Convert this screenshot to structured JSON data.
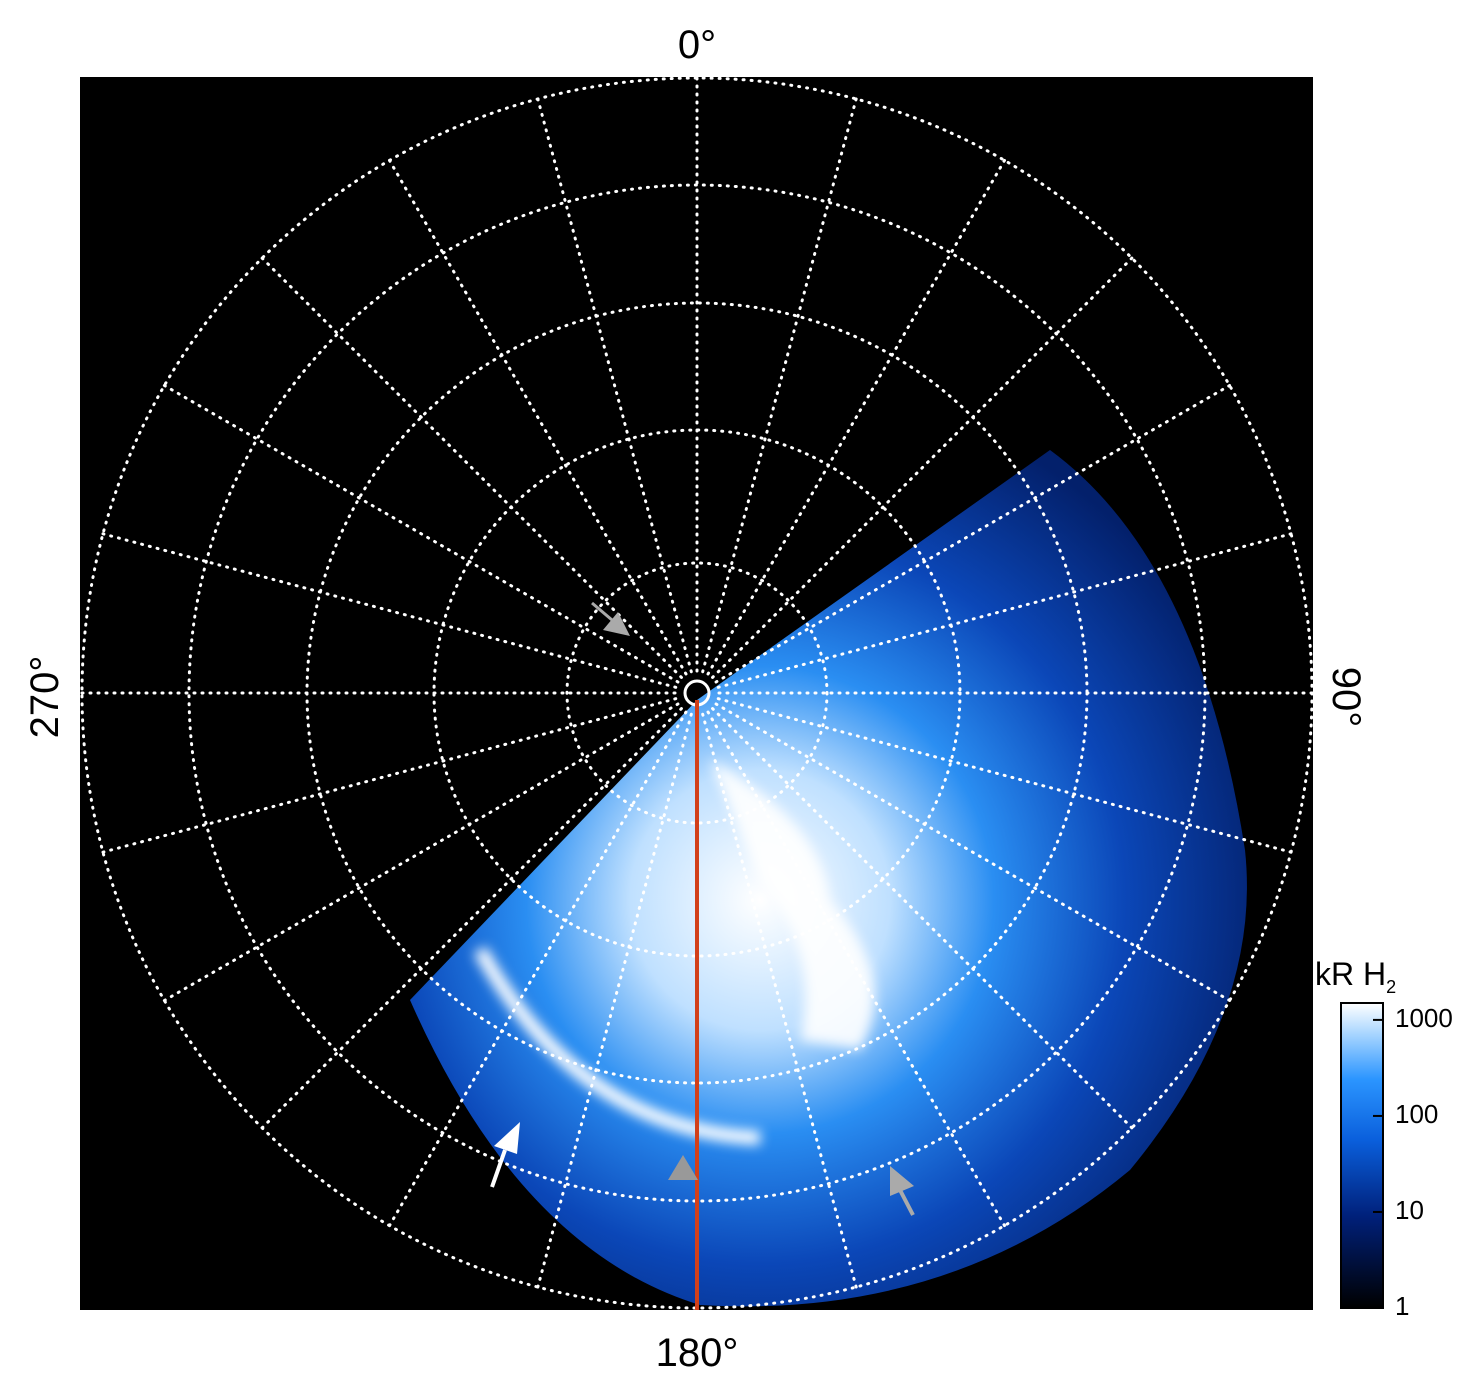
{
  "labels": {
    "top": "0°",
    "right": "90°",
    "bottom": "180°",
    "left": "270°"
  },
  "colorbar": {
    "title": "kR H",
    "title_sub": "2",
    "ticks": [
      1,
      10,
      100,
      1000
    ],
    "lim": [
      1,
      1500
    ],
    "log": true
  }
}
